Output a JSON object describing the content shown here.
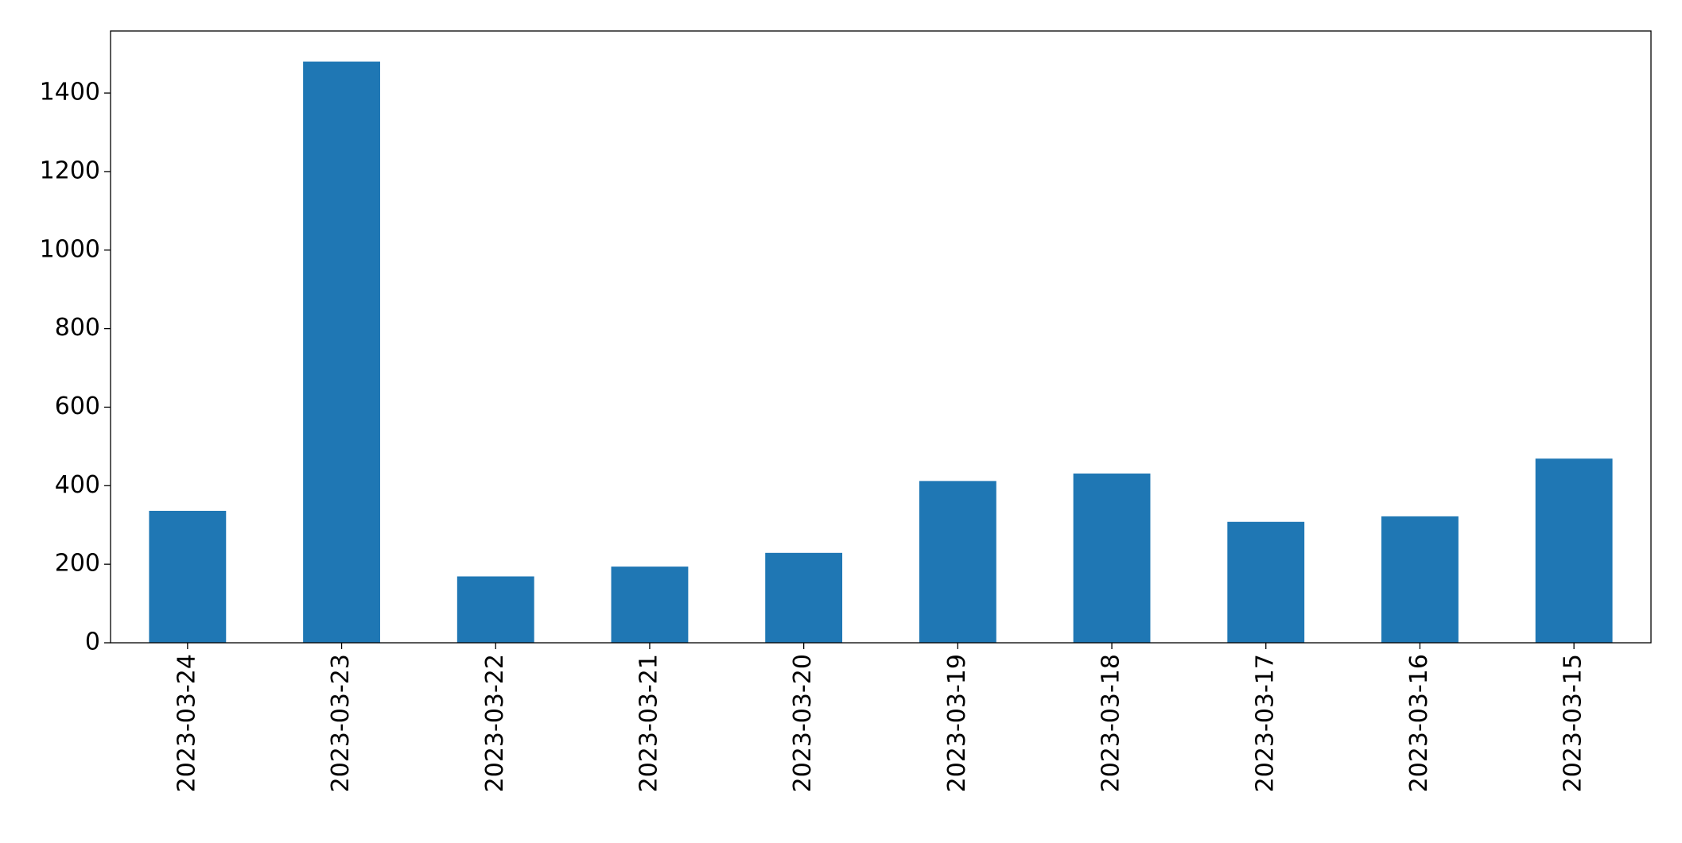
{
  "chart_data": {
    "type": "bar",
    "categories": [
      "2023-03-24",
      "2023-03-23",
      "2023-03-22",
      "2023-03-21",
      "2023-03-20",
      "2023-03-19",
      "2023-03-18",
      "2023-03-17",
      "2023-03-16",
      "2023-03-15"
    ],
    "values": [
      336,
      1480,
      169,
      194,
      229,
      412,
      431,
      308,
      322,
      469
    ],
    "color": "#1f77b4",
    "ylim": [
      0,
      1558
    ],
    "yticks": [
      0,
      200,
      400,
      600,
      800,
      1000,
      1200,
      1400
    ],
    "grid": false
  }
}
